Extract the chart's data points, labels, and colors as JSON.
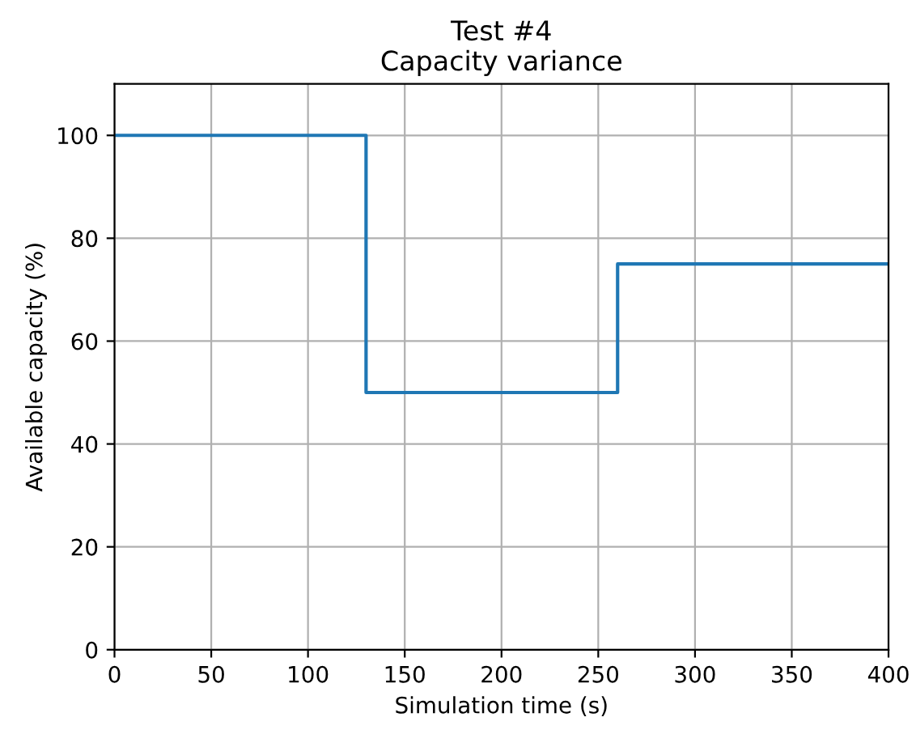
{
  "chart_data": {
    "type": "step",
    "title": "Test #4",
    "subtitle": "Capacity variance",
    "xlabel": "Simulation time (s)",
    "ylabel": "Available capacity (%)",
    "x": [
      0,
      130,
      260,
      400
    ],
    "series": [
      {
        "color": "#1f77b4",
        "values": [
          100,
          50,
          75,
          75
        ]
      }
    ],
    "xlim": [
      0,
      400
    ],
    "ylim": [
      0,
      110
    ],
    "xticks": [
      0,
      50,
      100,
      150,
      200,
      250,
      300,
      350,
      400
    ],
    "yticks": [
      0,
      20,
      40,
      60,
      80,
      100
    ],
    "grid": true
  }
}
